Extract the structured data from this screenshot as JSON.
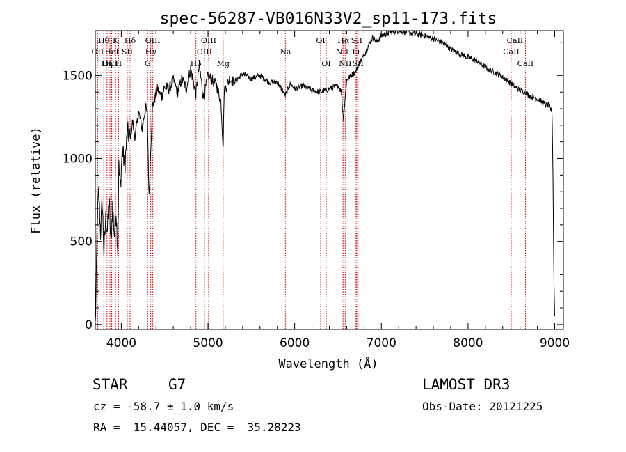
{
  "chart_data": {
    "type": "line",
    "title": "spec-56287-VB016N33V2_sp11-173.fits",
    "xlabel": "Wavelength (Å)",
    "ylabel": "Flux (relative)",
    "xlim": [
      3700,
      9100
    ],
    "ylim": [
      -30,
      1770
    ],
    "xticks": [
      4000,
      5000,
      6000,
      7000,
      8000,
      9000
    ],
    "xtick_labels": [
      "4000",
      "5000",
      "6000",
      "7000",
      "8000",
      "9000"
    ],
    "yticks": [
      0,
      500,
      1000,
      1500
    ],
    "ytick_labels": [
      "0",
      "500",
      "1000",
      "1500"
    ],
    "grid": false,
    "series": [
      {
        "name": "spectrum",
        "x": [
          3700,
          3710,
          3720,
          3740,
          3760,
          3780,
          3800,
          3820,
          3840,
          3860,
          3880,
          3900,
          3920,
          3940,
          3960,
          3970,
          3990,
          4010,
          4040,
          4070,
          4101,
          4130,
          4160,
          4200,
          4240,
          4280,
          4300,
          4320,
          4340,
          4361,
          4380,
          4420,
          4460,
          4500,
          4550,
          4600,
          4650,
          4700,
          4750,
          4800,
          4861,
          4900,
          4950,
          5000,
          5050,
          5100,
          5150,
          5175,
          5185,
          5200,
          5250,
          5300,
          5400,
          5500,
          5600,
          5700,
          5800,
          5893,
          5950,
          6000,
          6100,
          6200,
          6300,
          6400,
          6500,
          6540,
          6563,
          6580,
          6600,
          6650,
          6700,
          6750,
          6800,
          6850,
          6900,
          6950,
          7000,
          7100,
          7200,
          7300,
          7400,
          7500,
          7600,
          7700,
          7800,
          7900,
          8000,
          8100,
          8200,
          8300,
          8400,
          8500,
          8542,
          8600,
          8662,
          8700,
          8800,
          8850,
          8900,
          8930,
          8950,
          8970,
          8980,
          8990,
          9000
        ],
        "values": [
          0,
          200,
          600,
          800,
          550,
          750,
          420,
          640,
          560,
          760,
          480,
          720,
          540,
          690,
          440,
          960,
          820,
          1060,
          950,
          1160,
          1120,
          1220,
          1130,
          1280,
          1180,
          1310,
          1260,
          760,
          1080,
          1320,
          1350,
          1420,
          1370,
          1430,
          1420,
          1470,
          1400,
          1480,
          1420,
          1540,
          1390,
          1560,
          1360,
          1500,
          1470,
          1440,
          1340,
          1060,
          1390,
          1420,
          1480,
          1460,
          1510,
          1480,
          1500,
          1460,
          1460,
          1380,
          1450,
          1420,
          1440,
          1410,
          1400,
          1420,
          1440,
          1400,
          1230,
          1350,
          1470,
          1500,
          1520,
          1580,
          1620,
          1680,
          1730,
          1700,
          1740,
          1760,
          1770,
          1760,
          1750,
          1740,
          1720,
          1700,
          1660,
          1630,
          1610,
          1590,
          1550,
          1520,
          1490,
          1450,
          1430,
          1410,
          1400,
          1380,
          1360,
          1340,
          1320,
          1320,
          1300,
          1280,
          900,
          300,
          50
        ]
      }
    ],
    "lines": [
      {
        "label": "Hθ",
        "x": 3798,
        "row": 1
      },
      {
        "label": "OII",
        "x": 3727,
        "row": 2
      },
      {
        "label": "OIII",
        "x": 3869,
        "row": 3
      },
      {
        "label": "Hη",
        "x": 3835,
        "row": 3
      },
      {
        "label": "K",
        "x": 3934,
        "row": 1
      },
      {
        "label": "HeI",
        "x": 3889,
        "row": 2
      },
      {
        "label": "H",
        "x": 3968,
        "row": 3
      },
      {
        "label": "SII",
        "x": 4069,
        "row": 2
      },
      {
        "label": "Hδ",
        "x": 4101,
        "row": 1
      },
      {
        "label": "OIII",
        "x": 4363,
        "row": 1
      },
      {
        "label": "Hγ",
        "x": 4340,
        "row": 2
      },
      {
        "label": "G",
        "x": 4304,
        "row": 3
      },
      {
        "label": "Hβ",
        "x": 4861,
        "row": 3
      },
      {
        "label": "OIII",
        "x": 5007,
        "row": 1
      },
      {
        "label": "OIII",
        "x": 4959,
        "row": 2
      },
      {
        "label": "Mg",
        "x": 5175,
        "row": 3
      },
      {
        "label": "Na",
        "x": 5893,
        "row": 2
      },
      {
        "label": "OI",
        "x": 6300,
        "row": 1
      },
      {
        "label": "OI",
        "x": 6364,
        "row": 3
      },
      {
        "label": "Hα",
        "x": 6563,
        "row": 1
      },
      {
        "label": "NII",
        "x": 6548,
        "row": 2
      },
      {
        "label": "NII",
        "x": 6583,
        "row": 3
      },
      {
        "label": "SII",
        "x": 6716,
        "row": 1
      },
      {
        "label": "Li",
        "x": 6708,
        "row": 2
      },
      {
        "label": "SII",
        "x": 6731,
        "row": 3
      },
      {
        "label": "CaII",
        "x": 8542,
        "row": 1
      },
      {
        "label": "CaII",
        "x": 8498,
        "row": 2
      },
      {
        "label": "CaII",
        "x": 8662,
        "row": 3
      }
    ]
  },
  "info": {
    "class_label": "STAR",
    "subclass": "G7",
    "survey": "LAMOST DR3",
    "cz_text": "cz = -58.7 ± 1.0 km/s",
    "obs_date_text": "Obs-Date: 20121225",
    "coords_text": "RA =  15.44057, DEC =  35.28223"
  },
  "colors": {
    "line": "#000000",
    "marker": "#cc0000",
    "background": "#ffffff"
  }
}
